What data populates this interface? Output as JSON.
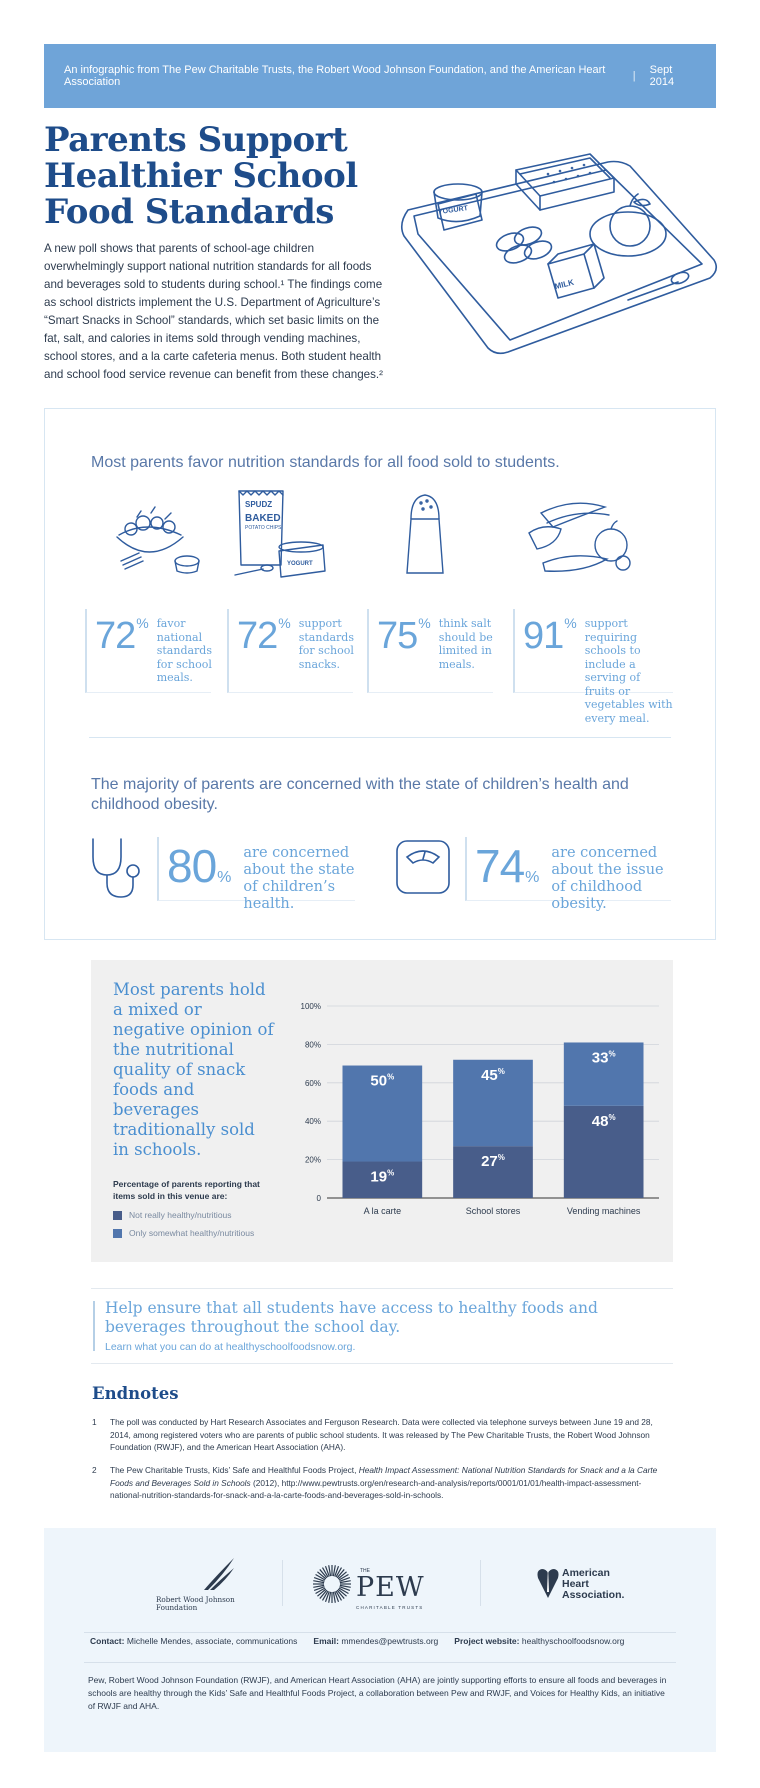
{
  "banner": {
    "text": "An infographic from The Pew Charitable Trusts, the Robert Wood Johnson Foundation, and the American Heart Association",
    "separator": "|",
    "date": "Sept 2014"
  },
  "title": {
    "line1": "Parents Support",
    "line2": "Healthier School",
    "line3": "Food Standards"
  },
  "intro": "A new poll shows that parents of school-age children overwhelmingly support national nutrition standards for all foods and beverages sold to students during school.¹ The findings come as school districts implement the U.S. Department of Agriculture’s “Smart Snacks in School” standards, which set basic limits on the fat, salt, and calories in items sold through vending machines, school stores, and a la carte cafeteria menus. Both student health and school food service revenue can benefit from these changes.²",
  "tray_labels": {
    "yogurt": "YOGURT",
    "milk": "MILK"
  },
  "section1": {
    "heading": "Most parents favor nutrition standards for all food sold to students.",
    "snack_bag": {
      "brand": "SPUDZ",
      "line1": "BAKED",
      "line2": "POTATO CHIPS"
    },
    "yogurt_label": "YOGURT",
    "stats": [
      {
        "value": "72",
        "unit": "%",
        "text": "favor national standards for school meals.",
        "icon": "salad-bowl-icon"
      },
      {
        "value": "72",
        "unit": "%",
        "text": "support standards for school snacks.",
        "icon": "chips-yogurt-icon"
      },
      {
        "value": "75",
        "unit": "%",
        "text": "think salt should be limited in meals.",
        "icon": "salt-shaker-icon"
      },
      {
        "value": "91",
        "unit": "%",
        "text": "support requiring schools to include a serving of fruits or vegetables with every meal.",
        "icon": "fruits-vegetables-icon"
      }
    ]
  },
  "section2": {
    "heading": "The majority of parents are concerned with the state of children’s health and childhood obesity.",
    "stats": [
      {
        "value": "80",
        "unit": "%",
        "text": "are concerned about the state of children’s health.",
        "icon": "stethoscope-icon"
      },
      {
        "value": "74",
        "unit": "%",
        "text": "are concerned about the issue of childhood obesity.",
        "icon": "scale-icon"
      }
    ]
  },
  "chart_panel": {
    "title": "Most parents hold a mixed or negative opinion of the nutritional quality of snack foods and beverages traditionally sold in schools.",
    "subtitle": "Percentage of parents reporting that items sold in this venue are:",
    "legend": [
      {
        "label": "Not really healthy/nutritious",
        "color": "#485d8a"
      },
      {
        "label": "Only somewhat healthy/nutritious",
        "color": "#5176ad"
      }
    ]
  },
  "chart_data": {
    "type": "bar",
    "stacked": true,
    "categories": [
      "A la carte",
      "School stores",
      "Vending machines"
    ],
    "series": [
      {
        "name": "Not really healthy/nutritious",
        "values": [
          19,
          27,
          48
        ],
        "color": "#485d8a"
      },
      {
        "name": "Only somewhat healthy/nutritious",
        "values": [
          50,
          45,
          33
        ],
        "color": "#5176ad"
      }
    ],
    "yticks": [
      "0",
      "20%",
      "40%",
      "60%",
      "80%",
      "100%"
    ],
    "ylim": [
      0,
      100
    ],
    "grid": true,
    "legend": "bottom-left",
    "label_unit": "%"
  },
  "cta": {
    "heading": "Help ensure that all students have access to healthy foods and beverages throughout the school day.",
    "link": "Learn what you can do at healthyschoolfoodsnow.org."
  },
  "endnotes": {
    "title": "Endnotes",
    "items": [
      {
        "n": "1",
        "text": "The poll was conducted by Hart Research Associates and Ferguson Research.  Data were collected via telephone surveys between June 19 and 28, 2014, among registered voters who are parents of public school students. It was released by The Pew Charitable Trusts, the Robert Wood Johnson Foundation (RWJF), and the American Heart Association (AHA)."
      },
      {
        "n": "2",
        "pre": "The Pew Charitable Trusts, Kids’ Safe and Healthful Foods Project, ",
        "italic": "Health Impact Assessment: National Nutrition Standards for Snack and a la Carte Foods and Beverages Sold in Schools",
        "post": " (2012), http://www.pewtrusts.org/en/research-and-analysis/reports/0001/01/01/health-impact-assessment-national-nutrition-standards-for-snack-and-a-la-carte-foods-and-beverages-sold-in-schools."
      }
    ]
  },
  "footer": {
    "rwjf_line1": "Robert Wood Johnson",
    "rwjf_line2": "Foundation",
    "pew_the": "THE",
    "pew_name": "PEW",
    "pew_sub": "CHARITABLE TRUSTS",
    "aha_line1": "American",
    "aha_line2": "Heart",
    "aha_line3": "Association.",
    "contact_label": "Contact:",
    "contact_value": "Michelle Mendes, associate, communications",
    "email_label": "Email:",
    "email_value": "mmendes@pewtrusts.org",
    "website_label": "Project website:",
    "website_value": "healthyschoolfoodsnow.org",
    "disclaimer": "Pew, Robert Wood Johnson Foundation (RWJF), and American Heart Association (AHA) are jointly supporting efforts to ensure all foods and beverages in schools are healthy through the Kids’ Safe and Healthful Foods Project, a collaboration between Pew and RWJF, and Voices for Healthy Kids, an initiative of RWJF and AHA."
  }
}
